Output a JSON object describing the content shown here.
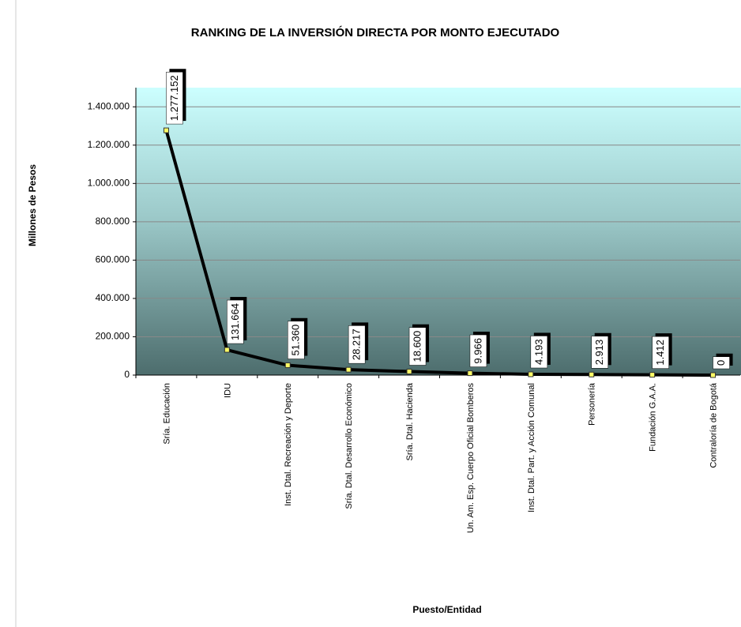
{
  "chart_data": {
    "type": "line",
    "title": "RANKING DE LA INVERSIÓN DIRECTA POR MONTO EJECUTADO",
    "x_label": "Puesto/Entidad",
    "y_label": "Millones de Pesos",
    "categories": [
      "Sría. Educación",
      "IDU",
      "Inst. Dtal. Recreación y Deporte",
      "Sría. Dtal. Desarrollo Económico",
      "Sría. Dtal. Hacienda",
      "Un. Am. Esp. Cuerpo Oficial Bomberos",
      "Inst. Dtal. Part. y Acción Comunal",
      "Personería",
      "Fundación G.A.A.",
      "Contraloría de Bogotá"
    ],
    "values": [
      1277152,
      131664,
      51360,
      28217,
      18600,
      9966,
      4193,
      2913,
      1412,
      0
    ],
    "value_labels": [
      "1.277.152",
      "131.664",
      "51.360",
      "28.217",
      "18.600",
      "9.966",
      "4.193",
      "2.913",
      "1.412",
      "0"
    ],
    "color": "#000000",
    "ylim": [
      0,
      1500000
    ],
    "yticks": [
      0,
      {
        "value": 200000,
        "label": "200.000"
      },
      {
        "value": 400000,
        "label": "400.000"
      },
      {
        "value": 600000,
        "label": "600.000"
      },
      {
        "value": 800000,
        "label": "800.000"
      },
      {
        "value": 1000000,
        "label": "1.000.000"
      },
      {
        "value": 1200000,
        "label": "1.200.000"
      },
      {
        "value": 1400000,
        "label": "1.400.000"
      }
    ],
    "grid": true
  }
}
